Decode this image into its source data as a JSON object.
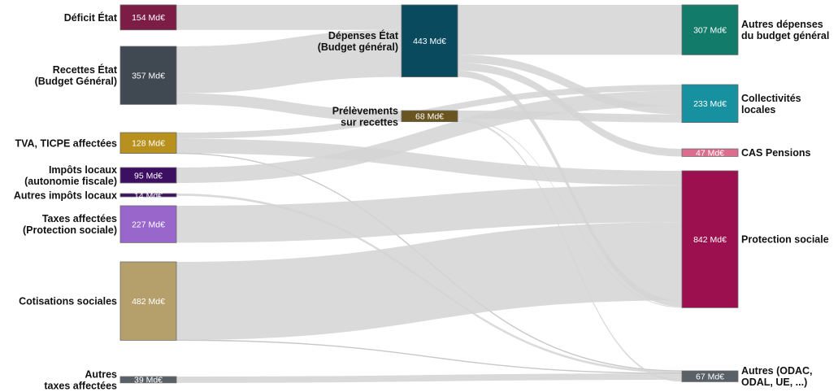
{
  "chart_data": {
    "type": "sankey",
    "unit": "Md€",
    "nodes": [
      {
        "id": "deficit",
        "lines": [
          "Déficit État"
        ],
        "value": 154,
        "color": "#7b1d45",
        "column": 0
      },
      {
        "id": "recettes",
        "lines": [
          "Recettes État",
          "(Budget Général)"
        ],
        "value": 357,
        "color": "#404852",
        "column": 0
      },
      {
        "id": "tva",
        "lines": [
          "TVA, TICPE affectées"
        ],
        "value": 128,
        "color": "#b8901e",
        "column": 0
      },
      {
        "id": "impots_locaux",
        "lines": [
          "Impôts locaux",
          "(autonomie fiscale)"
        ],
        "value": 95,
        "color": "#3d0f63",
        "column": 0
      },
      {
        "id": "autres_impots_locaux",
        "lines": [
          "Autres impôts locaux"
        ],
        "value": 14,
        "color": "#3d0f63",
        "column": 0
      },
      {
        "id": "taxes_protection",
        "lines": [
          "Taxes affectées",
          "(Protection sociale)"
        ],
        "value": 227,
        "color": "#9966cc",
        "column": 0
      },
      {
        "id": "cotisations",
        "lines": [
          "Cotisations sociales"
        ],
        "value": 482,
        "color": "#b5a06b",
        "column": 0
      },
      {
        "id": "autres_taxes",
        "lines": [
          "Autres",
          "taxes affectées"
        ],
        "value": 39,
        "color": "#5a6068",
        "column": 0
      },
      {
        "id": "depenses_etat",
        "lines": [
          "Dépenses État",
          "(Budget général)"
        ],
        "value": 443,
        "color": "#0a4a5e",
        "column": 1
      },
      {
        "id": "prelevements",
        "lines": [
          "Prélèvements",
          "sur recettes"
        ],
        "value": 68,
        "color": "#6a5520",
        "column": 1
      },
      {
        "id": "autres_depenses",
        "lines": [
          "Autres dépenses",
          "du budget général"
        ],
        "value": 307,
        "color": "#137b6a",
        "column": 2
      },
      {
        "id": "collectivites",
        "lines": [
          "Collectivités",
          "locales"
        ],
        "value": 233,
        "color": "#17909f",
        "column": 2
      },
      {
        "id": "cas_pensions",
        "lines": [
          "CAS Pensions"
        ],
        "value": 47,
        "color": "#db6e8e",
        "column": 2
      },
      {
        "id": "protection_sociale",
        "lines": [
          "Protection sociale"
        ],
        "value": 842,
        "color": "#9c1050",
        "column": 2
      },
      {
        "id": "autres_odac",
        "lines": [
          "Autres (ODAC,",
          "ODAL, UE, ...)"
        ],
        "value": 67,
        "color": "#5a6068",
        "column": 2
      }
    ],
    "links": [
      {
        "source": "deficit",
        "target": "depenses_etat",
        "value": 154
      },
      {
        "source": "recettes",
        "target": "depenses_etat",
        "value": 289
      },
      {
        "source": "recettes",
        "target": "prelevements",
        "value": 68
      },
      {
        "source": "tva",
        "target": "collectivites",
        "value": 38
      },
      {
        "source": "tva",
        "target": "protection_sociale",
        "value": 89
      },
      {
        "source": "tva",
        "target": "autres_odac",
        "value": 1
      },
      {
        "source": "impots_locaux",
        "target": "collectivites",
        "value": 95
      },
      {
        "source": "autres_impots_locaux",
        "target": "autres_odac",
        "value": 14
      },
      {
        "source": "taxes_protection",
        "target": "protection_sociale",
        "value": 227
      },
      {
        "source": "cotisations",
        "target": "protection_sociale",
        "value": 481
      },
      {
        "source": "cotisations",
        "target": "autres_odac",
        "value": 1
      },
      {
        "source": "autres_taxes",
        "target": "autres_odac",
        "value": 39
      },
      {
        "source": "depenses_etat",
        "target": "autres_depenses",
        "value": 307
      },
      {
        "source": "depenses_etat",
        "target": "collectivites",
        "value": 50
      },
      {
        "source": "depenses_etat",
        "target": "cas_pensions",
        "value": 47
      },
      {
        "source": "depenses_etat",
        "target": "protection_sociale",
        "value": 39
      },
      {
        "source": "prelevements",
        "target": "collectivites",
        "value": 50
      },
      {
        "source": "prelevements",
        "target": "protection_sociale",
        "value": 6
      },
      {
        "source": "prelevements",
        "target": "autres_odac",
        "value": 12
      }
    ]
  }
}
